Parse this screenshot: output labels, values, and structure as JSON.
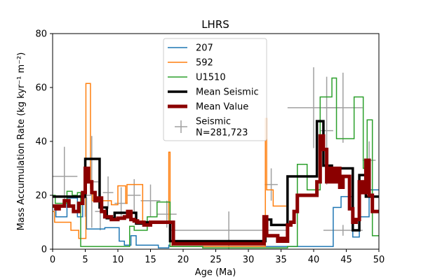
{
  "chart_data": {
    "type": "line",
    "title": "LHRS",
    "xlabel": "Age (Ma)",
    "ylabel": "Mass Accumulation Rate (kg kyr⁻¹ m⁻²)",
    "xlim": [
      0,
      50
    ],
    "ylim": [
      0,
      80
    ],
    "xticks": [
      0,
      5,
      10,
      15,
      20,
      25,
      30,
      35,
      40,
      45,
      50
    ],
    "yticks": [
      0,
      20,
      40,
      60,
      80
    ],
    "grid": false,
    "legend_position": "top-center",
    "series": [
      {
        "name": "207",
        "color": "#1f77b4",
        "style": "step",
        "x": [
          0,
          0.5,
          2.2,
          3.8,
          4.6,
          5.2,
          8.0,
          10.2,
          11.0,
          12.0,
          12.8,
          16.2,
          17.8,
          18.0,
          40.5,
          43.0,
          44.2,
          46.0,
          47.0,
          48.5,
          50
        ],
        "y": [
          16,
          12,
          19,
          12,
          19,
          7.5,
          8,
          3,
          1.5,
          5,
          1.5,
          0.5,
          1.5,
          1,
          1,
          15.5,
          19.5,
          4.5,
          12,
          22,
          22
        ]
      },
      {
        "name": "592",
        "color": "#ff7f0e",
        "style": "step",
        "x": [
          0,
          0.3,
          1.4,
          2.8,
          4.0,
          5.1,
          5.8,
          6.1,
          9.0,
          10.0,
          11.2,
          11.4,
          13.8,
          17.8,
          18.0,
          18.3,
          32.6,
          32.8,
          33.8,
          34.5,
          35.8
        ],
        "y": [
          14,
          10,
          10,
          7,
          4,
          61.5,
          22.5,
          18,
          16.5,
          23.5,
          17,
          24,
          10,
          36,
          3,
          1,
          48.5,
          22,
          16,
          16,
          16
        ]
      },
      {
        "name": "U1510",
        "color": "#2ca02c",
        "style": "step",
        "x": [
          0,
          0.4,
          2.2,
          3.0,
          3.8,
          4.3,
          11.0,
          11.8,
          12.5,
          14.5,
          16.0,
          18.0,
          23.0,
          34.0,
          36.0,
          37.5,
          38.2,
          39.0,
          41.0,
          42.8,
          43.5,
          45.0,
          46.2,
          47.6,
          48.2,
          49.0,
          50
        ],
        "y": [
          20,
          17,
          21.5,
          20,
          21,
          1,
          1,
          8.5,
          7,
          12,
          17.5,
          1,
          0.5,
          0.5,
          1,
          31.5,
          31.5,
          22,
          56.5,
          63.5,
          41,
          41,
          56.5,
          30,
          48,
          5,
          5
        ]
      },
      {
        "name": "Mean Seismic",
        "color": "#000000",
        "style": "step",
        "x": [
          0,
          3.8,
          5.0,
          7.2,
          8.3,
          9.5,
          12.8,
          13.6,
          18.0,
          32.0,
          32.6,
          33.5,
          36.0,
          40.5,
          41.5,
          42.8,
          46.0,
          47.0,
          48.0,
          50
        ],
        "y": [
          19.5,
          19.5,
          33.5,
          15.5,
          11.5,
          13.5,
          9.5,
          10,
          3,
          3,
          11,
          9,
          27,
          47.5,
          31,
          30,
          7,
          27.5,
          19.5,
          19.5
        ]
      },
      {
        "name": "Mean Value",
        "color": "#8b0000",
        "style": "line",
        "x": [
          0,
          0.5,
          1.0,
          1.8,
          2.5,
          3.2,
          4.0,
          4.6,
          5.0,
          5.5,
          6.0,
          6.5,
          7.0,
          7.5,
          8.0,
          9.0,
          10.0,
          11.0,
          11.5,
          12.0,
          12.5,
          13.0,
          14.0,
          15.0,
          16.0,
          17.0,
          18.0,
          18.5,
          20.0,
          22.0,
          24.0,
          28.0,
          32.0,
          32.4,
          32.8,
          33.5,
          34.5,
          35.0,
          35.5,
          36.0,
          36.5,
          37.0,
          37.5,
          38.0,
          38.5,
          39.0,
          39.5,
          40.0,
          40.5,
          41.0,
          41.5,
          42.0,
          42.5,
          43.0,
          43.5,
          44.0,
          44.5,
          45.0,
          45.5,
          46.0,
          46.5,
          47.0,
          47.5,
          48.0,
          48.5,
          49.0,
          50
        ],
        "y": [
          16,
          15,
          16,
          18,
          16,
          14,
          17,
          21,
          30,
          25,
          21,
          18,
          19,
          14,
          12,
          11,
          11.5,
          12,
          14,
          11,
          10.5,
          10,
          9,
          10,
          10,
          10,
          10,
          2,
          2,
          2,
          2,
          2,
          2,
          12,
          5,
          5,
          3,
          4,
          3,
          9,
          10,
          14,
          20,
          20,
          20,
          20,
          20,
          20,
          25,
          42,
          37,
          25,
          30,
          25,
          30,
          23,
          27,
          27,
          15,
          10,
          11,
          25,
          21,
          33,
          20,
          14,
          14
        ]
      },
      {
        "name": "Seismic\nN=281,723",
        "color": "#a0a0a0",
        "style": "errorbar",
        "points": [
          {
            "x": 1.8,
            "y": 27,
            "xerr": 2.0,
            "yerr": 11
          },
          {
            "x": 5.0,
            "y": 20,
            "xerr": 1.0,
            "yerr": 8
          },
          {
            "x": 6.0,
            "y": 25,
            "xerr": 1.0,
            "yerr": 17
          },
          {
            "x": 7.3,
            "y": 14,
            "xerr": 0.8,
            "yerr": 7
          },
          {
            "x": 8.5,
            "y": 21,
            "xerr": 0.8,
            "yerr": 6
          },
          {
            "x": 10.5,
            "y": 17,
            "xerr": 1.0,
            "yerr": 6
          },
          {
            "x": 12.5,
            "y": 20,
            "xerr": 1.0,
            "yerr": 6
          },
          {
            "x": 15.0,
            "y": 18,
            "xerr": 1.5,
            "yerr": 6
          },
          {
            "x": 17.5,
            "y": 13,
            "xerr": 1.5,
            "yerr": 5
          },
          {
            "x": 27.0,
            "y": 7,
            "xerr": 9.0,
            "yerr": 7
          },
          {
            "x": 33.5,
            "y": 24,
            "xerr": 1.0,
            "yerr": 6
          },
          {
            "x": 40.0,
            "y": 52.5,
            "xerr": 4.0,
            "yerr": 15
          },
          {
            "x": 42.0,
            "y": 44,
            "xerr": 1.0,
            "yerr": 20
          },
          {
            "x": 44.5,
            "y": 52.5,
            "xerr": 3.0,
            "yerr": 13
          },
          {
            "x": 44.5,
            "y": 7,
            "xerr": 3.0,
            "yerr": 2
          },
          {
            "x": 48.5,
            "y": 33,
            "xerr": 1.0,
            "yerr": 7
          }
        ]
      }
    ]
  }
}
